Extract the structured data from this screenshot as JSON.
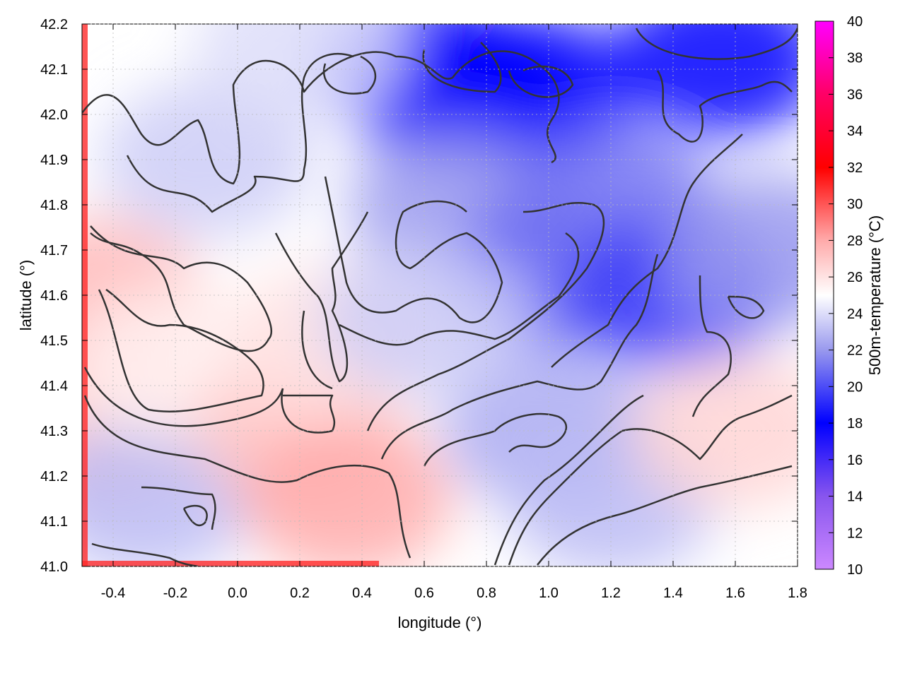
{
  "chart_data": {
    "type": "heatmap",
    "title": "",
    "xlabel": "longitude (°)",
    "ylabel": "latitude (°)",
    "colorbar_label": "500m-temperature (°C)",
    "xlim": [
      -0.5,
      1.8
    ],
    "ylim": [
      41.0,
      42.2
    ],
    "colorbar_range": [
      10,
      40
    ],
    "x_ticks": [
      "-0.4",
      "-0.2",
      "0.0",
      "0.2",
      "0.4",
      "0.6",
      "0.8",
      "1.0",
      "1.2",
      "1.4",
      "1.6",
      "1.8"
    ],
    "x_tick_values": [
      -0.4,
      -0.2,
      0.0,
      0.2,
      0.4,
      0.6,
      0.8,
      1.0,
      1.2,
      1.4,
      1.6,
      1.8
    ],
    "y_ticks": [
      "41.0",
      "41.1",
      "41.2",
      "41.3",
      "41.4",
      "41.5",
      "41.6",
      "41.7",
      "41.8",
      "41.9",
      "42.0",
      "42.1",
      "42.2"
    ],
    "y_tick_values": [
      41.0,
      41.1,
      41.2,
      41.3,
      41.4,
      41.5,
      41.6,
      41.7,
      41.8,
      41.9,
      42.0,
      42.1,
      42.2
    ],
    "colorbar_ticks": [
      "10",
      "12",
      "14",
      "16",
      "18",
      "20",
      "22",
      "24",
      "26",
      "28",
      "30",
      "32",
      "34",
      "36",
      "38",
      "40"
    ],
    "colorbar_tick_values": [
      10,
      12,
      14,
      16,
      18,
      20,
      22,
      24,
      26,
      28,
      30,
      32,
      34,
      36,
      38,
      40
    ],
    "colormap": [
      {
        "value": 10,
        "color": "#cc88ff"
      },
      {
        "value": 14,
        "color": "#8855ee"
      },
      {
        "value": 18,
        "color": "#0000ff"
      },
      {
        "value": 22,
        "color": "#9999ee"
      },
      {
        "value": 25,
        "color": "#ffffff"
      },
      {
        "value": 28,
        "color": "#ffaaaa"
      },
      {
        "value": 32,
        "color": "#ff0000"
      },
      {
        "value": 36,
        "color": "#ff0066"
      },
      {
        "value": 40,
        "color": "#ff00ff"
      }
    ],
    "grid": true,
    "temperature_field": [
      {
        "lon": -0.45,
        "lat": 41.6,
        "temp": 27.5
      },
      {
        "lon": -0.45,
        "lat": 41.3,
        "temp": 27.0
      },
      {
        "lon": -0.3,
        "lat": 41.15,
        "temp": 23.0
      },
      {
        "lon": -0.2,
        "lat": 41.45,
        "temp": 25.5
      },
      {
        "lon": -0.1,
        "lat": 41.9,
        "temp": 23.5
      },
      {
        "lon": 0.2,
        "lat": 41.3,
        "temp": 27.0
      },
      {
        "lon": 0.35,
        "lat": 41.15,
        "temp": 28.0
      },
      {
        "lon": 0.3,
        "lat": 41.5,
        "temp": 26.0
      },
      {
        "lon": 0.6,
        "lat": 42.1,
        "temp": 19.0
      },
      {
        "lon": 0.75,
        "lat": 42.05,
        "temp": 17.5
      },
      {
        "lon": 0.95,
        "lat": 42.05,
        "temp": 18.0
      },
      {
        "lon": 0.7,
        "lat": 41.8,
        "temp": 22.0
      },
      {
        "lon": 1.0,
        "lat": 41.65,
        "temp": 20.5
      },
      {
        "lon": 1.2,
        "lat": 41.8,
        "temp": 21.0
      },
      {
        "lon": 1.4,
        "lat": 41.6,
        "temp": 19.5
      },
      {
        "lon": 1.55,
        "lat": 42.12,
        "temp": 18.0
      },
      {
        "lon": 1.0,
        "lat": 41.3,
        "temp": 22.5
      },
      {
        "lon": 1.2,
        "lat": 41.15,
        "temp": 23.0
      },
      {
        "lon": 1.6,
        "lat": 41.3,
        "temp": 26.5
      },
      {
        "lon": 1.7,
        "lat": 41.7,
        "temp": 22.0
      },
      {
        "lon": 0.2,
        "lat": 42.15,
        "temp": 24.0
      },
      {
        "lon": 0.6,
        "lat": 41.55,
        "temp": 23.5
      }
    ]
  }
}
